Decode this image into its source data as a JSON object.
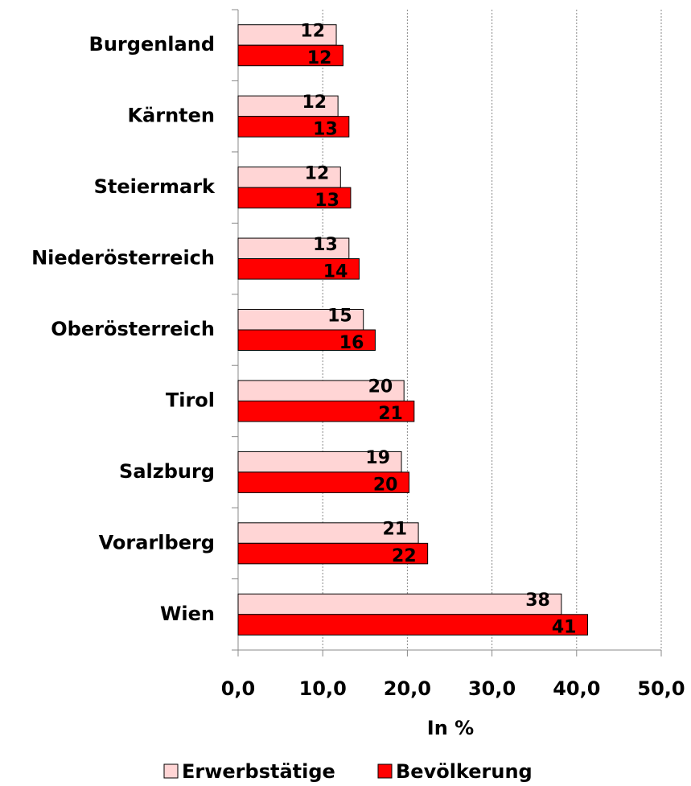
{
  "chart_data": {
    "type": "hbar",
    "categories": [
      "Burgenland",
      "Kärnten",
      "Steiermark",
      "Niederösterreich",
      "Oberösterreich",
      "Tirol",
      "Salzburg",
      "Vorarlberg",
      "Wien"
    ],
    "series": [
      {
        "name": "Erwerbstätige",
        "color": "#ffd5d5",
        "values": [
          11.6,
          11.8,
          12.1,
          13.1,
          14.8,
          19.6,
          19.3,
          21.3,
          38.2
        ],
        "value_labels": [
          "12",
          "12",
          "12",
          "13",
          "15",
          "20",
          "19",
          "21",
          "38"
        ]
      },
      {
        "name": "Bevölkerung",
        "color": "#ff0000",
        "values": [
          12.4,
          13.1,
          13.3,
          14.3,
          16.2,
          20.8,
          20.2,
          22.4,
          41.3
        ],
        "value_labels": [
          "12",
          "13",
          "13",
          "14",
          "16",
          "21",
          "20",
          "22",
          "41"
        ]
      }
    ],
    "xlabel": "In %",
    "xlim": [
      0,
      50
    ],
    "xticks": [
      {
        "value": 0,
        "label": "0,0"
      },
      {
        "value": 10,
        "label": "10,0"
      },
      {
        "value": 20,
        "label": "20,0"
      },
      {
        "value": 30,
        "label": "30,0"
      },
      {
        "value": 40,
        "label": "40,0"
      },
      {
        "value": 50,
        "label": "50,0"
      }
    ],
    "grid": true,
    "legend": "bottom"
  }
}
